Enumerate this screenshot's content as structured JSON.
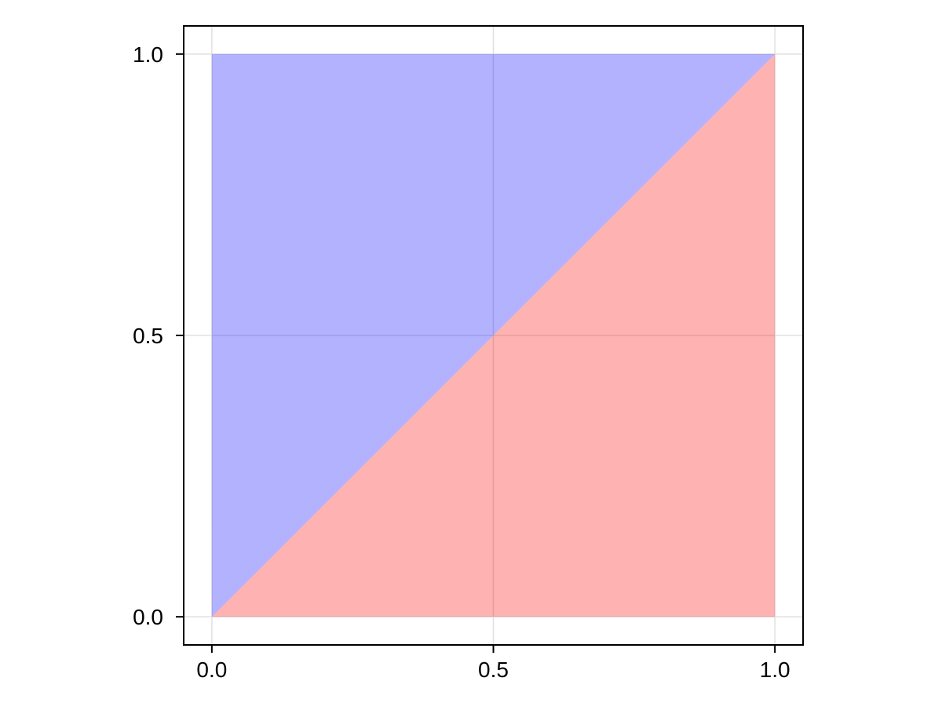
{
  "figure": {
    "background_color": "#ffffff",
    "title": ""
  },
  "chart_data": {
    "type": "area",
    "title": "",
    "xlabel": "",
    "ylabel": "",
    "xlim": [
      -0.05,
      1.05
    ],
    "ylim": [
      -0.05,
      1.05
    ],
    "grid": true,
    "legend": "none",
    "xticks": [
      0.0,
      0.5,
      1.0
    ],
    "yticks": [
      0.0,
      0.5,
      1.0
    ],
    "xtick_labels": [
      "0.0",
      "0.5",
      "1.0"
    ],
    "ytick_labels": [
      "0.0",
      "0.5",
      "1.0"
    ],
    "series": [
      {
        "name": "upper-left-triangle",
        "shape": "polygon",
        "points": [
          [
            0,
            0
          ],
          [
            0,
            1
          ],
          [
            1,
            1
          ]
        ],
        "fill": "rgba(0,0,255,0.30)"
      },
      {
        "name": "lower-right-triangle",
        "shape": "polygon",
        "points": [
          [
            0,
            0
          ],
          [
            1,
            0
          ],
          [
            1,
            1
          ]
        ],
        "fill": "rgba(255,0,0,0.30)"
      }
    ],
    "style": {
      "grid_color": "#e0e0e0",
      "frame_color": "#000000",
      "tick_color": "#000000",
      "tick_label_color": "#000000",
      "blue_fill_rendered": "#b2b2ff",
      "red_fill_rendered": "#ffb2b2"
    }
  }
}
